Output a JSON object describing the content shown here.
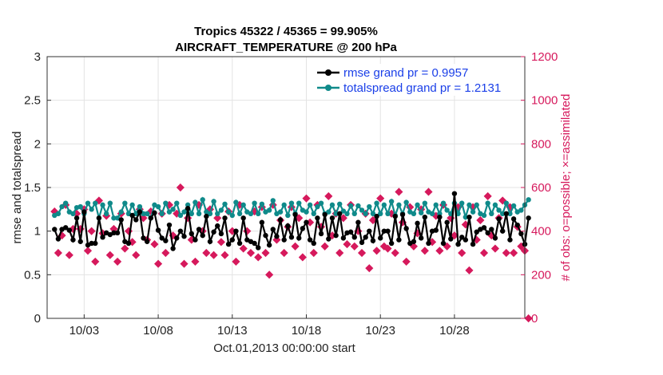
{
  "chart_data": {
    "type": "line",
    "title_line1": "Tropics 45322 / 45365 = 99.905%",
    "title_line2": "AIRCRAFT_TEMPERATURE @ 200 hPa",
    "xlabel": "Oct.01,2013 00:00:00 start",
    "ylabel_left": "rmse and totalspread",
    "ylabel_right": "# of obs: o=possible; ×=assimilated",
    "xlim": [
      0.5,
      32.75
    ],
    "ylim_left": [
      0,
      3
    ],
    "ylim_right": [
      0,
      1200
    ],
    "xticks": [
      {
        "value": 3,
        "label": "10/03"
      },
      {
        "value": 8,
        "label": "10/08"
      },
      {
        "value": 13,
        "label": "10/13"
      },
      {
        "value": 18,
        "label": "10/18"
      },
      {
        "value": 23,
        "label": "10/23"
      },
      {
        "value": 28,
        "label": "10/28"
      }
    ],
    "yticks_left": [
      "0",
      "0.5",
      "1",
      "1.5",
      "2",
      "2.5",
      "3"
    ],
    "yticks_right": [
      "0",
      "200",
      "400",
      "600",
      "800",
      "1000",
      "1200"
    ],
    "legend": [
      {
        "label": "rmse grand pr = 0.9957",
        "color": "#000000"
      },
      {
        "label": "totalspread grand pr = 1.2131",
        "color": "#0f8a8a"
      }
    ],
    "x_start": 1.0,
    "x_step": 0.25,
    "series": [
      {
        "name": "rmse",
        "axis": "left",
        "color": "#000000",
        "values": [
          1.02,
          0.91,
          1.02,
          1.04,
          1.01,
          0.9,
          1.15,
          0.88,
          1.22,
          0.84,
          0.86,
          0.86,
          1.15,
          0.93,
          0.98,
          0.96,
          0.98,
          0.98,
          1.13,
          0.88,
          0.86,
          1.18,
          1.13,
          1.22,
          0.92,
          0.88,
          1.15,
          1.21,
          1.01,
          0.92,
          0.89,
          1.07,
          0.8,
          0.92,
          1.0,
          0.94,
          1.26,
          0.97,
          0.9,
          1.02,
          0.95,
          1.17,
          0.88,
          0.99,
          1.06,
          0.97,
          1.15,
          0.85,
          0.9,
          1.0,
          0.86,
          1.15,
          0.9,
          0.88,
          0.86,
          0.81,
          1.1,
          0.95,
          0.84,
          1.02,
          0.94,
          1.13,
          0.9,
          1.06,
          0.93,
          1.19,
          0.92,
          1.03,
          1.1,
          0.9,
          0.86,
          1.15,
          0.97,
          1.19,
          0.91,
          1.15,
          0.95,
          1.2,
          0.92,
          0.98,
          0.99,
          0.93,
          1.1,
          0.87,
          0.93,
          1.0,
          0.89,
          1.17,
          0.92,
          1.0,
          1.0,
          0.86,
          1.17,
          0.9,
          1.19,
          1.03,
          0.86,
          0.88,
          1.09,
          0.92,
          1.16,
          0.86,
          1.0,
          1.01,
          1.16,
          0.86,
          1.1,
          0.91,
          1.43,
          0.85,
          0.93,
          0.9,
          1.16,
          0.85,
          0.99,
          1.02,
          1.04,
          0.98,
          1.02,
          0.92,
          1.14,
          1.0,
          1.2,
          0.9,
          1.14,
          1.07,
          0.97,
          0.85,
          1.15
        ]
      },
      {
        "name": "totalspread",
        "axis": "left",
        "color": "#0f8a8a",
        "values": [
          1.18,
          1.2,
          1.28,
          1.32,
          1.22,
          1.2,
          1.27,
          1.28,
          1.2,
          1.32,
          1.25,
          1.32,
          1.15,
          1.3,
          1.2,
          1.32,
          1.15,
          1.15,
          1.22,
          1.32,
          1.2,
          1.3,
          1.2,
          1.28,
          1.2,
          1.2,
          1.15,
          1.3,
          1.28,
          1.2,
          1.32,
          1.22,
          1.25,
          1.32,
          1.18,
          1.22,
          1.3,
          1.2,
          1.33,
          1.2,
          1.36,
          1.22,
          1.2,
          1.34,
          1.2,
          1.24,
          1.31,
          1.22,
          1.18,
          1.33,
          1.2,
          1.3,
          1.22,
          1.2,
          1.32,
          1.2,
          1.31,
          1.22,
          1.24,
          1.35,
          1.2,
          1.22,
          1.3,
          1.18,
          1.32,
          1.2,
          1.32,
          1.24,
          1.22,
          1.3,
          1.2,
          1.28,
          1.32,
          1.2,
          1.22,
          1.3,
          1.2,
          1.31,
          1.23,
          1.2,
          1.29,
          1.2,
          1.29,
          1.24,
          1.2,
          1.28,
          1.2,
          1.32,
          1.2,
          1.3,
          1.2,
          1.34,
          1.18,
          1.3,
          1.2,
          1.33,
          1.22,
          1.2,
          1.3,
          1.21,
          1.32,
          1.22,
          1.2,
          1.3,
          1.2,
          1.32,
          1.24,
          1.2,
          1.32,
          1.2,
          1.32,
          1.16,
          1.3,
          1.22,
          1.3,
          1.2,
          1.18,
          1.32,
          1.2,
          1.3,
          1.24,
          1.2,
          1.32,
          1.2,
          1.29,
          1.22,
          1.24,
          1.3,
          1.36
        ]
      },
      {
        "name": "obs_assimilated",
        "axis": "right",
        "color": "#d6195c",
        "values": [
          490,
          300,
          380,
          520,
          290,
          410,
          480,
          410,
          500,
          310,
          400,
          260,
          540,
          390,
          470,
          290,
          410,
          260,
          480,
          320,
          400,
          350,
          290,
          500,
          460,
          360,
          490,
          340,
          250,
          480,
          300,
          520,
          380,
          480,
          600,
          250,
          460,
          360,
          260,
          520,
          400,
          300,
          500,
          290,
          460,
          350,
          290,
          490,
          400,
          260,
          520,
          320,
          400,
          300,
          490,
          280,
          510,
          300,
          200,
          520,
          360,
          450,
          300,
          420,
          510,
          330,
          460,
          280,
          550,
          440,
          300,
          520,
          420,
          330,
          560,
          380,
          480,
          300,
          460,
          340,
          520,
          330,
          400,
          300,
          480,
          230,
          450,
          310,
          550,
          330,
          320,
          480,
          300,
          580,
          440,
          260,
          510,
          330,
          390,
          500,
          310,
          580,
          350,
          470,
          310,
          520,
          330,
          460,
          380,
          510,
          300,
          430,
          220,
          510,
          360,
          450,
          300,
          560,
          380,
          320,
          460,
          540,
          300,
          510,
          300,
          420,
          330,
          310,
          0
        ]
      }
    ]
  }
}
